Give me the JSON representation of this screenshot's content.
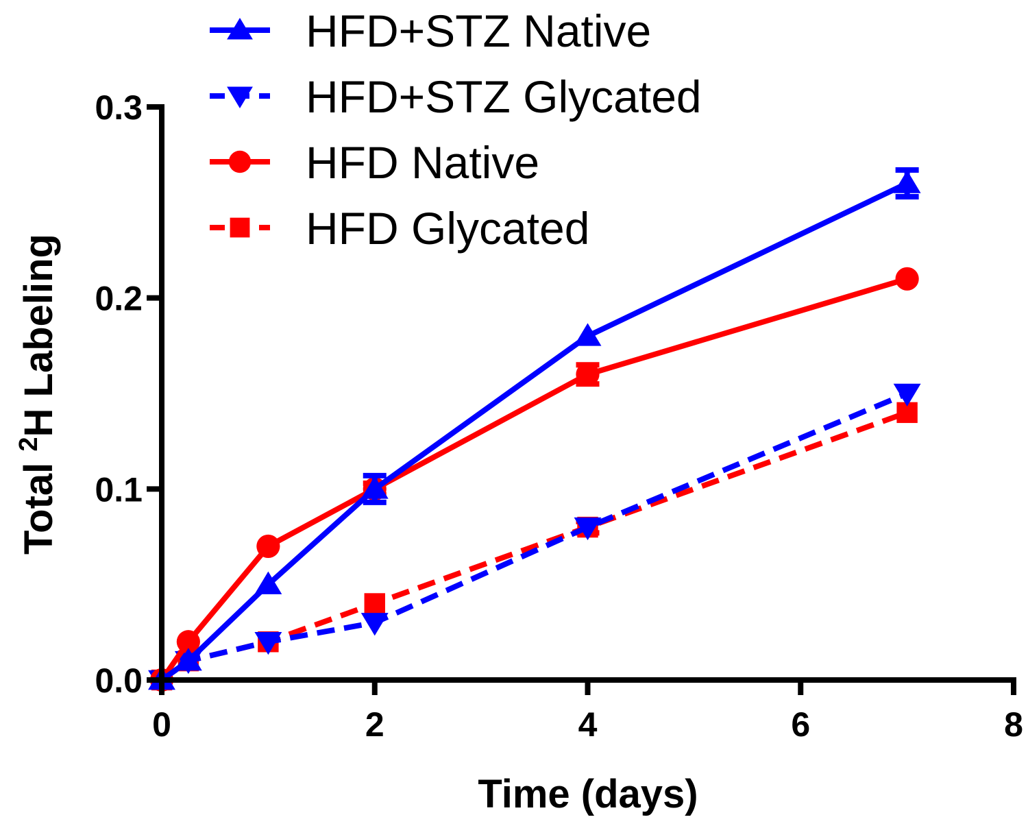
{
  "chart_data": {
    "type": "line",
    "title": "",
    "xlabel": "Time (days)",
    "ylabel_parts": [
      "Total ",
      "2",
      "H Labeling"
    ],
    "xlim": [
      0,
      8
    ],
    "ylim": [
      0,
      0.3
    ],
    "xticks": [
      0,
      2,
      4,
      6,
      8
    ],
    "xtick_labels": [
      "0",
      "2",
      "4",
      "6",
      "8"
    ],
    "yticks": [
      0.0,
      0.1,
      0.2,
      0.3
    ],
    "ytick_labels": [
      "0.0",
      "0.1",
      "0.2",
      "0.3"
    ],
    "legend_position": "top",
    "series": [
      {
        "name": "HFD+STZ Native",
        "color": "#0000ff",
        "dash": false,
        "marker": "triangle-up",
        "x": [
          0,
          0.25,
          1,
          2,
          4,
          7
        ],
        "y": [
          0,
          0.01,
          0.05,
          0.1,
          0.18,
          0.26
        ],
        "err": [
          0,
          0,
          0,
          0.007,
          0,
          0.007
        ]
      },
      {
        "name": "HFD+STZ Glycated",
        "color": "#0000ff",
        "dash": true,
        "marker": "triangle-down",
        "x": [
          0,
          0.25,
          1,
          2,
          4,
          7
        ],
        "y": [
          0,
          0.01,
          0.02,
          0.03,
          0.08,
          0.15
        ],
        "err": [
          0,
          0,
          0,
          0,
          0,
          0
        ]
      },
      {
        "name": "HFD Native",
        "color": "#ff0000",
        "dash": false,
        "marker": "circle",
        "x": [
          0,
          0.25,
          1,
          2,
          4,
          7
        ],
        "y": [
          0,
          0.02,
          0.07,
          0.1,
          0.16,
          0.21
        ],
        "err": [
          0,
          0,
          0,
          0.003,
          0.005,
          0
        ]
      },
      {
        "name": "HFD Glycated",
        "color": "#ff0000",
        "dash": true,
        "marker": "square",
        "x": [
          0,
          0.25,
          1,
          2,
          4,
          7
        ],
        "y": [
          0,
          0.01,
          0.02,
          0.04,
          0.08,
          0.14
        ],
        "err": [
          0,
          0,
          0,
          0,
          0.003,
          0
        ]
      }
    ]
  }
}
